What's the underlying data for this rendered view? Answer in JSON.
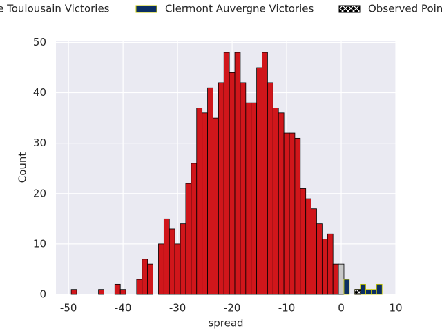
{
  "chart_data": {
    "type": "histogram",
    "xlabel": "spread",
    "ylabel": "Count",
    "bins": [
      -49.5,
      -48.5,
      -47.5,
      -46.5,
      -45.5,
      -44.5,
      -43.5,
      -42.5,
      -41.5,
      -40.5,
      -39.5,
      -38.5,
      -37.5,
      -36.5,
      -35.5,
      -34.5,
      -33.5,
      -32.5,
      -31.5,
      -30.5,
      -29.5,
      -28.5,
      -27.5,
      -26.5,
      -25.5,
      -24.5,
      -23.5,
      -22.5,
      -21.5,
      -20.5,
      -19.5,
      -18.5,
      -17.5,
      -16.5,
      -15.5,
      -14.5,
      -13.5,
      -12.5,
      -11.5,
      -10.5,
      -9.5,
      -8.5,
      -7.5,
      -6.5,
      -5.5,
      -4.5,
      -3.5,
      -2.5,
      -1.5,
      -0.5,
      0.5,
      1.5,
      2.5,
      3.5,
      4.5,
      5.5,
      6.5,
      7.5
    ],
    "series": [
      {
        "name": "Stade Toulousain Victories",
        "color": "#d0161b",
        "edgecolor": "#000000",
        "values": [
          1,
          0,
          0,
          0,
          0,
          1,
          0,
          0,
          2,
          1,
          0,
          0,
          3,
          7,
          6,
          0,
          10,
          15,
          13,
          10,
          14,
          22,
          26,
          37,
          36,
          41,
          35,
          42,
          48,
          44,
          48,
          42,
          38,
          38,
          45,
          48,
          42,
          37,
          36,
          32,
          32,
          31,
          21,
          19,
          17,
          14,
          11,
          12,
          6,
          null,
          null,
          null,
          null,
          null,
          null,
          null,
          null
        ]
      },
      {
        "color": "#c8c8c8",
        "edgecolor": "#000000",
        "values": [
          null,
          null,
          null,
          null,
          null,
          null,
          null,
          null,
          null,
          null,
          null,
          null,
          null,
          null,
          null,
          null,
          null,
          null,
          null,
          null,
          null,
          null,
          null,
          null,
          null,
          null,
          null,
          null,
          null,
          null,
          null,
          null,
          null,
          null,
          null,
          null,
          null,
          null,
          null,
          null,
          null,
          null,
          null,
          null,
          null,
          null,
          null,
          null,
          null,
          6,
          null,
          null,
          null,
          null,
          null,
          null,
          null
        ]
      },
      {
        "name": "Clermont Auvergne Victories",
        "color": "#0b2e63",
        "edgecolor": "#c8c800",
        "values": [
          null,
          null,
          null,
          null,
          null,
          null,
          null,
          null,
          null,
          null,
          null,
          null,
          null,
          null,
          null,
          null,
          null,
          null,
          null,
          null,
          null,
          null,
          null,
          null,
          null,
          null,
          null,
          null,
          null,
          null,
          null,
          null,
          null,
          null,
          null,
          null,
          null,
          null,
          null,
          null,
          null,
          null,
          null,
          null,
          null,
          null,
          null,
          null,
          null,
          null,
          3,
          0,
          1,
          2,
          1,
          1,
          2
        ]
      },
      {
        "name": "Observed Point",
        "color": "#000000",
        "hatch": true,
        "edgecolor": "#000000",
        "values": [
          null,
          null,
          null,
          null,
          null,
          null,
          null,
          null,
          null,
          null,
          null,
          null,
          null,
          null,
          null,
          null,
          null,
          null,
          null,
          null,
          null,
          null,
          null,
          null,
          null,
          null,
          null,
          null,
          null,
          null,
          null,
          null,
          null,
          null,
          null,
          null,
          null,
          null,
          null,
          null,
          null,
          null,
          null,
          null,
          null,
          null,
          null,
          null,
          null,
          null,
          null,
          null,
          1,
          null,
          null,
          null,
          null
        ]
      }
    ],
    "xlim": [
      -52.3,
      10
    ],
    "ylim": [
      0,
      50.2
    ],
    "xticks": [
      -50,
      -40,
      -30,
      -20,
      -10,
      0,
      10
    ],
    "yticks": [
      0,
      10,
      20,
      30,
      40,
      50
    ],
    "grid": true
  }
}
